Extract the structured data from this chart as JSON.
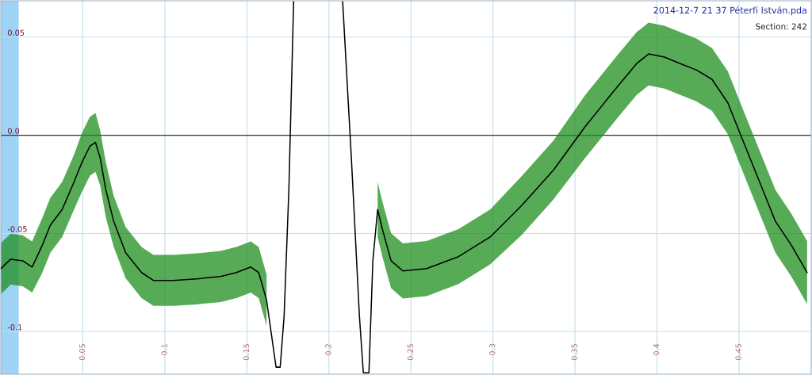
{
  "chart_data": {
    "type": "line",
    "title": "2014-12-7 21 37 Péterfi István.pda",
    "subtitle": "Section: 242",
    "xlim": [
      0,
      0.494
    ],
    "ylim": [
      -0.1217,
      0.0685
    ],
    "xticks": [
      0.05,
      0.1,
      0.15,
      0.2,
      0.25,
      0.3,
      0.35,
      0.4,
      0.45
    ],
    "yticks": [
      0.05,
      {
        "value": 0,
        "label": "0.0"
      },
      -0.05,
      -0.1
    ],
    "grid": true,
    "marker": "none",
    "line_style": "solid",
    "ref_lines": [
      {
        "axis": "y",
        "value": 0,
        "color": "#333333"
      }
    ],
    "bands": [
      {
        "axis": "x",
        "from": 0,
        "to": 0.0109,
        "color": "#9fd3f5"
      }
    ],
    "series": [
      {
        "color": "#000000",
        "x": [
          0,
          0.006,
          0.0133,
          0.0191,
          0.0254,
          0.0302,
          0.0374,
          0.0447,
          0.0495,
          0.0543,
          0.0577,
          0.0606,
          0.064,
          0.0688,
          0.0761,
          0.0858,
          0.093,
          0.105,
          0.1195,
          0.134,
          0.1436,
          0.1524,
          0.1572,
          0.162,
          0.1654,
          0.1678,
          0.1703,
          0.1727,
          0.1756,
          0.1785,
          0.19,
          0.2084,
          0.2137,
          0.2186,
          0.221,
          0.2244,
          0.2268,
          0.2297,
          0.2326,
          0.2379,
          0.2451,
          0.2596,
          0.279,
          0.2983,
          0.3176,
          0.3369,
          0.3562,
          0.3756,
          0.3876,
          0.3949,
          0.4046,
          0.4142,
          0.4239,
          0.4335,
          0.4432,
          0.4528,
          0.4625,
          0.4722,
          0.4818,
          0.4915
        ],
        "values": [
          -0.0679,
          -0.0631,
          -0.0639,
          -0.0671,
          -0.0558,
          -0.0458,
          -0.0378,
          -0.0237,
          -0.0137,
          -0.0056,
          -0.0036,
          -0.0116,
          -0.0277,
          -0.0438,
          -0.0598,
          -0.0699,
          -0.0739,
          -0.0739,
          -0.0731,
          -0.0719,
          -0.0699,
          -0.0671,
          -0.0699,
          -0.0839,
          -0.104,
          -0.1181,
          -0.1181,
          -0.092,
          -0.0277,
          0.068,
          null,
          0.068,
          -0.0116,
          -0.092,
          -0.121,
          -0.121,
          -0.0639,
          -0.0378,
          -0.0478,
          -0.0639,
          -0.0691,
          -0.0679,
          -0.0618,
          -0.0518,
          -0.0357,
          -0.0177,
          0.0044,
          0.0245,
          0.0365,
          0.0414,
          0.0398,
          0.0365,
          0.0333,
          0.0285,
          0.0165,
          -0.0036,
          -0.0237,
          -0.0438,
          -0.0558,
          -0.0699
        ],
        "lower": [
          -0.0809,
          -0.0761,
          -0.0769,
          -0.0801,
          -0.0698,
          -0.0598,
          -0.0518,
          -0.0377,
          -0.0287,
          -0.0206,
          -0.0186,
          -0.0256,
          -0.0417,
          -0.0568,
          -0.0728,
          -0.0829,
          -0.0869,
          -0.0869,
          -0.0861,
          -0.0849,
          -0.0829,
          -0.0801,
          -0.0829,
          -0.0969,
          null,
          null,
          null,
          null,
          null,
          null,
          null,
          null,
          null,
          null,
          null,
          null,
          null,
          -0.0518,
          -0.0618,
          -0.0779,
          -0.0831,
          -0.0819,
          -0.0758,
          -0.0658,
          -0.0507,
          -0.0327,
          -0.0116,
          0.0085,
          0.0205,
          0.0254,
          0.0238,
          0.0205,
          0.0173,
          0.0125,
          0.0005,
          -0.0196,
          -0.0397,
          -0.0598,
          -0.0718,
          -0.0859
        ],
        "upper": [
          -0.0549,
          -0.0501,
          -0.0509,
          -0.0541,
          -0.0418,
          -0.0318,
          -0.0238,
          -0.0097,
          0.0013,
          0.0094,
          0.0114,
          0.0024,
          -0.0137,
          -0.0308,
          -0.0468,
          -0.0569,
          -0.0609,
          -0.0609,
          -0.0601,
          -0.0589,
          -0.0569,
          -0.0541,
          -0.0569,
          -0.0709,
          null,
          null,
          null,
          null,
          null,
          null,
          null,
          null,
          null,
          null,
          null,
          null,
          null,
          -0.0238,
          -0.0338,
          -0.0499,
          -0.0551,
          -0.0539,
          -0.0478,
          -0.0378,
          -0.0207,
          -0.0027,
          0.0204,
          0.0405,
          0.0525,
          0.0574,
          0.0558,
          0.0525,
          0.0493,
          0.0445,
          0.0325,
          0.0124,
          -0.0077,
          -0.0278,
          -0.0398,
          -0.0539
        ]
      }
    ]
  }
}
